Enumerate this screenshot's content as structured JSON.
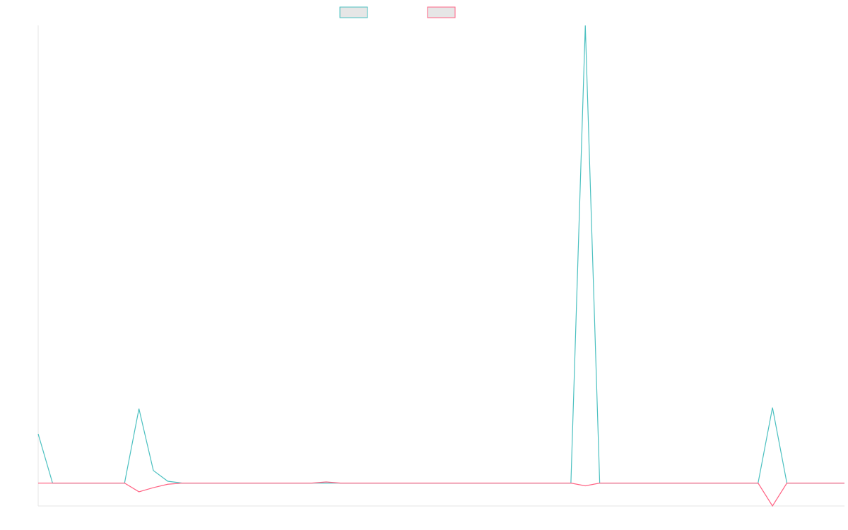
{
  "chart_data": {
    "type": "line",
    "title": "",
    "xlabel": "",
    "ylabel": "",
    "legend_position": "top-center",
    "grid": false,
    "x": [
      0,
      1,
      2,
      3,
      4,
      5,
      6,
      7,
      8,
      9,
      10,
      11,
      12,
      13,
      14,
      15,
      16,
      17,
      18,
      19,
      20,
      21,
      22,
      23,
      24,
      25,
      26,
      27,
      28,
      29,
      30,
      31,
      32,
      33,
      34,
      35,
      36,
      37,
      38,
      39,
      40,
      41,
      42,
      43,
      44,
      45,
      46,
      47,
      48,
      49,
      50,
      51,
      52,
      53,
      54,
      55,
      56
    ],
    "ylim": [
      -10,
      200
    ],
    "series": [
      {
        "name": "",
        "color": "#4bc0c0",
        "values": [
          21.5,
          0,
          0,
          0,
          0,
          0,
          0,
          32.5,
          5.5,
          0.8,
          0,
          0,
          0,
          0,
          0,
          0,
          0,
          0,
          0,
          0,
          0,
          0,
          0,
          0,
          0,
          0,
          0,
          0,
          0,
          0,
          0,
          0,
          0,
          0,
          0,
          0,
          0,
          0,
          200,
          0,
          0,
          0,
          0,
          0,
          0,
          0,
          0,
          0,
          0,
          0,
          0,
          33,
          0,
          0,
          0,
          0,
          0
        ]
      },
      {
        "name": "",
        "color": "#ff6384",
        "values": [
          0,
          0,
          0,
          0,
          0,
          0,
          0,
          -3.8,
          -2,
          -0.5,
          0,
          0,
          0,
          0,
          0,
          0,
          0,
          0,
          0,
          0,
          0.5,
          0,
          0,
          0,
          0,
          0,
          0,
          0,
          0,
          0,
          0,
          0,
          0,
          0,
          0,
          0,
          0,
          0,
          -1.2,
          0,
          0,
          0,
          0,
          0,
          0,
          0,
          0,
          0,
          0,
          0,
          0,
          -10,
          0,
          0,
          0,
          0,
          0
        ]
      }
    ]
  }
}
